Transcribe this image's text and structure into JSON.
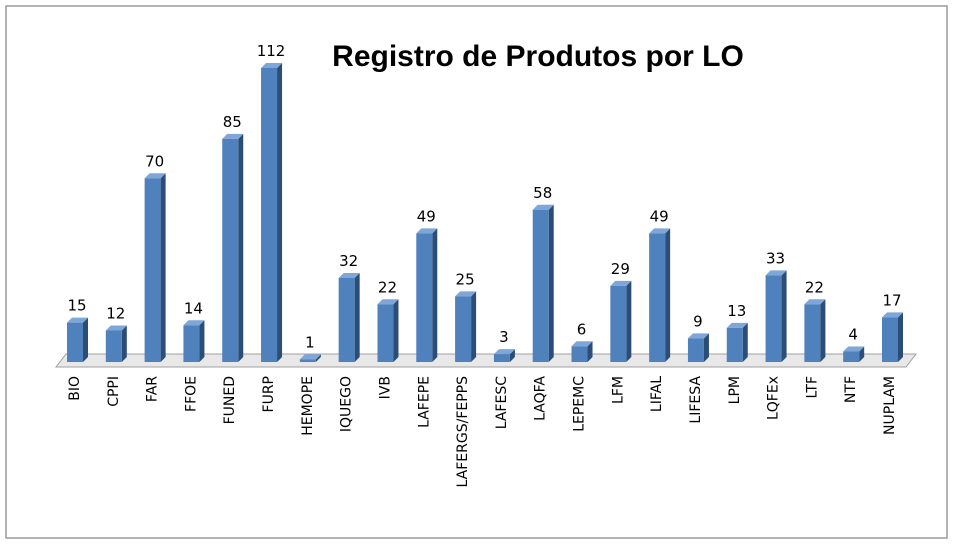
{
  "chart_data": {
    "type": "bar",
    "title": "Registro de Produtos por LO",
    "categories": [
      "BIO",
      "CPPI",
      "FAR",
      "FFOE",
      "FUNED",
      "FURP",
      "HEMOPE",
      "IQUEGO",
      "IVB",
      "LAFEPE",
      "LAFERGS/FEPPS",
      "LAFESC",
      "LAQFA",
      "LEPEMC",
      "LFM",
      "LIFAL",
      "LIFESA",
      "LPM",
      "LQFEx",
      "LTF",
      "NTF",
      "NUPLAM"
    ],
    "values": [
      15,
      12,
      70,
      14,
      85,
      112,
      1,
      32,
      22,
      49,
      25,
      3,
      58,
      6,
      29,
      49,
      9,
      13,
      33,
      22,
      4,
      17
    ],
    "color": "#4f81bd"
  }
}
